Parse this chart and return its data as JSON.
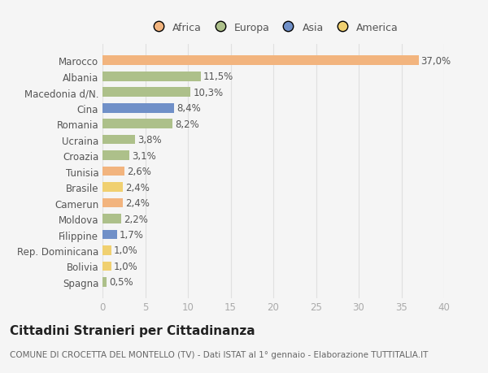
{
  "categories": [
    "Marocco",
    "Albania",
    "Macedonia d/N.",
    "Cina",
    "Romania",
    "Ucraina",
    "Croazia",
    "Tunisia",
    "Brasile",
    "Camerun",
    "Moldova",
    "Filippine",
    "Rep. Dominicana",
    "Bolivia",
    "Spagna"
  ],
  "values": [
    37.0,
    11.5,
    10.3,
    8.4,
    8.2,
    3.8,
    3.1,
    2.6,
    2.4,
    2.4,
    2.2,
    1.7,
    1.0,
    1.0,
    0.5
  ],
  "labels": [
    "37,0%",
    "11,5%",
    "10,3%",
    "8,4%",
    "8,2%",
    "3,8%",
    "3,1%",
    "2,6%",
    "2,4%",
    "2,4%",
    "2,2%",
    "1,7%",
    "1,0%",
    "1,0%",
    "0,5%"
  ],
  "colors": [
    "#f2b47e",
    "#adc08a",
    "#adc08a",
    "#7090c8",
    "#adc08a",
    "#adc08a",
    "#adc08a",
    "#f2b47e",
    "#f0d070",
    "#f2b47e",
    "#adc08a",
    "#7090c8",
    "#f0d070",
    "#f0d070",
    "#adc08a"
  ],
  "legend_labels": [
    "Africa",
    "Europa",
    "Asia",
    "America"
  ],
  "legend_colors": [
    "#f2b47e",
    "#adc08a",
    "#7090c8",
    "#f0d070"
  ],
  "title": "Cittadini Stranieri per Cittadinanza",
  "subtitle": "COMUNE DI CROCETTA DEL MONTELLO (TV) - Dati ISTAT al 1° gennaio - Elaborazione TUTTITALIA.IT",
  "xlim": [
    0,
    40
  ],
  "xticks": [
    0,
    5,
    10,
    15,
    20,
    25,
    30,
    35,
    40
  ],
  "bg_color": "#f5f5f5",
  "bar_height": 0.6,
  "label_fontsize": 8.5,
  "tick_fontsize": 8.5,
  "title_fontsize": 11,
  "subtitle_fontsize": 7.5
}
